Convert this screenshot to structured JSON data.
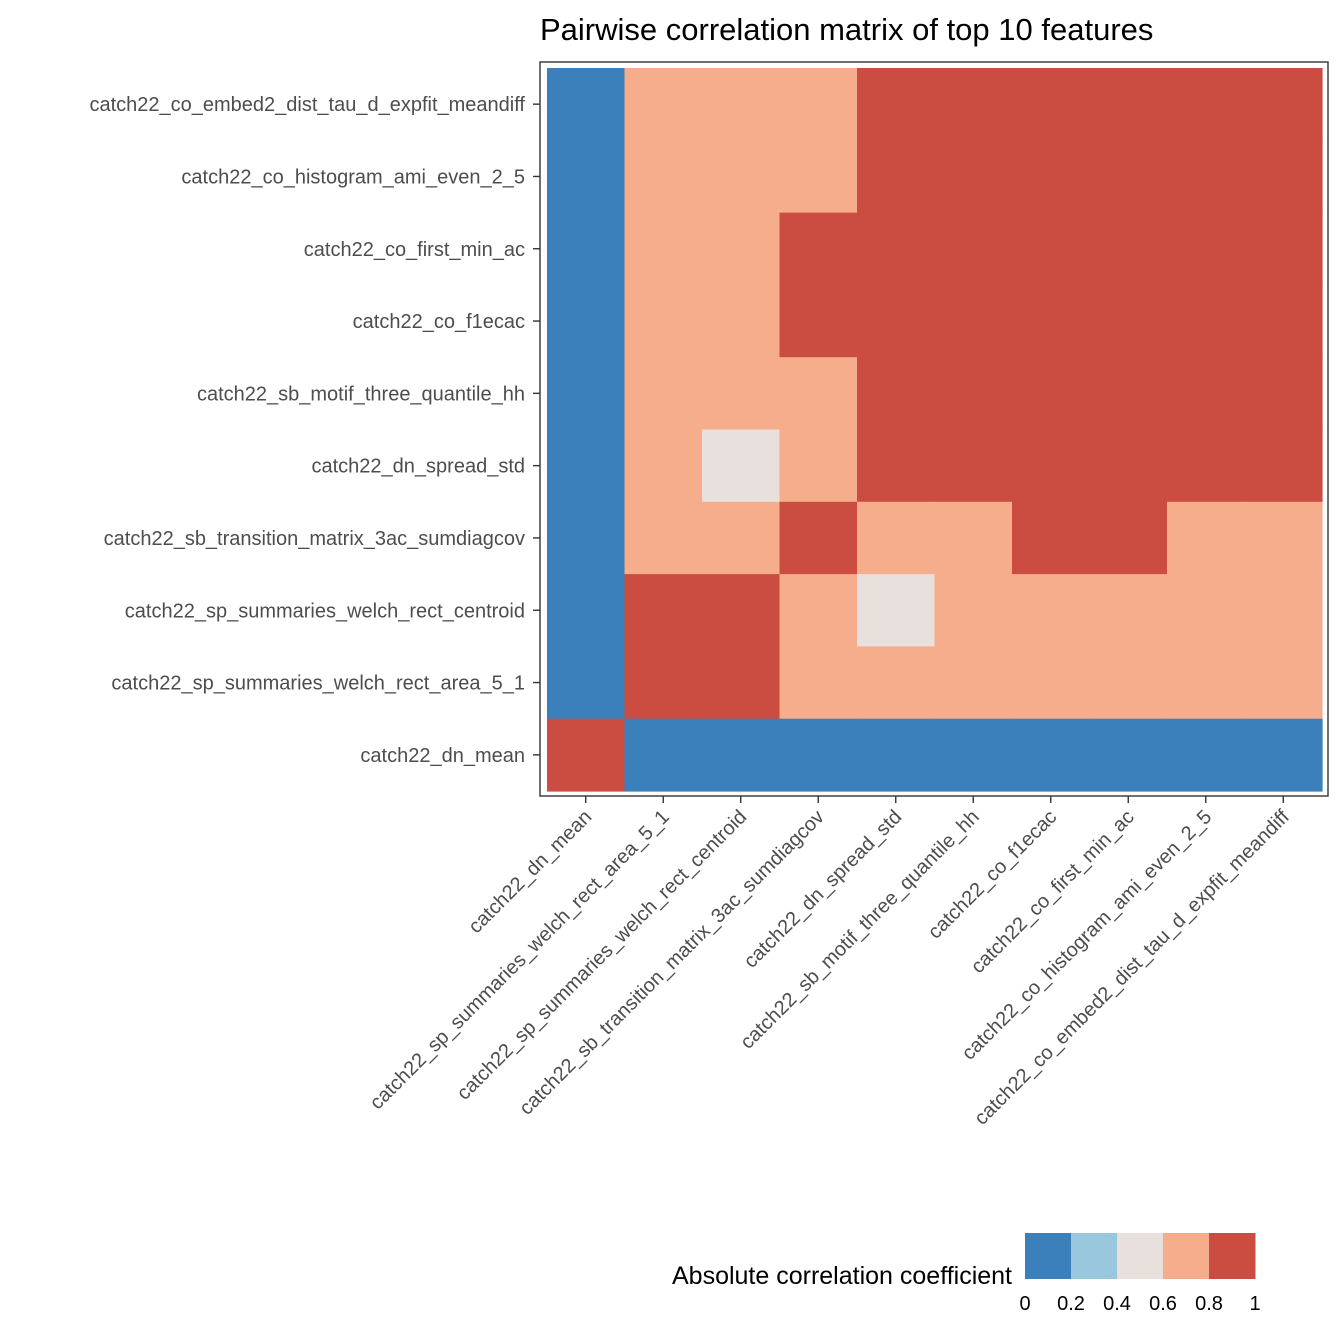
{
  "chart_data": {
    "type": "heatmap",
    "title": "Pairwise correlation matrix of top 10 features",
    "x_categories": [
      "catch22_dn_mean",
      "catch22_sp_summaries_welch_rect_area_5_1",
      "catch22_sp_summaries_welch_rect_centroid",
      "catch22_sb_transition_matrix_3ac_sumdiagcov",
      "catch22_dn_spread_std",
      "catch22_sb_motif_three_quantile_hh",
      "catch22_co_f1ecac",
      "catch22_co_first_min_ac",
      "catch22_co_histogram_ami_even_2_5",
      "catch22_co_embed2_dist_tau_d_expfit_meandiff"
    ],
    "y_categories_top_to_bottom": [
      "catch22_co_embed2_dist_tau_d_expfit_meandiff",
      "catch22_co_histogram_ami_even_2_5",
      "catch22_co_first_min_ac",
      "catch22_co_f1ecac",
      "catch22_sb_motif_three_quantile_hh",
      "catch22_dn_spread_std",
      "catch22_sb_transition_matrix_3ac_sumdiagcov",
      "catch22_sp_summaries_welch_rect_centroid",
      "catch22_sp_summaries_welch_rect_area_5_1",
      "catch22_dn_mean"
    ],
    "bins": [
      {
        "range": [
          0,
          0.2
        ],
        "color": "#3b80bb"
      },
      {
        "range": [
          0.2,
          0.4
        ],
        "color": "#98c7de"
      },
      {
        "range": [
          0.4,
          0.6
        ],
        "color": "#e7e0dd"
      },
      {
        "range": [
          0.6,
          0.8
        ],
        "color": "#f6ad8b"
      },
      {
        "range": [
          0.8,
          1
        ],
        "color": "#cb4d42"
      }
    ],
    "cell_bins_top_to_bottom": [
      [
        0,
        3,
        3,
        3,
        4,
        4,
        4,
        4,
        4,
        4
      ],
      [
        0,
        3,
        3,
        3,
        4,
        4,
        4,
        4,
        4,
        4
      ],
      [
        0,
        3,
        3,
        4,
        4,
        4,
        4,
        4,
        4,
        4
      ],
      [
        0,
        3,
        3,
        4,
        4,
        4,
        4,
        4,
        4,
        4
      ],
      [
        0,
        3,
        3,
        3,
        4,
        4,
        4,
        4,
        4,
        4
      ],
      [
        0,
        3,
        2,
        3,
        4,
        4,
        4,
        4,
        4,
        4
      ],
      [
        0,
        3,
        3,
        4,
        3,
        3,
        4,
        4,
        3,
        3
      ],
      [
        0,
        4,
        4,
        3,
        2,
        3,
        3,
        3,
        3,
        3
      ],
      [
        0,
        4,
        4,
        3,
        3,
        3,
        3,
        3,
        3,
        3
      ],
      [
        4,
        0,
        0,
        0,
        0,
        0,
        0,
        0,
        0,
        0
      ]
    ],
    "legend": {
      "title": "Absolute correlation coefficient",
      "ticks": [
        "0",
        "0.2",
        "0.4",
        "0.6",
        "0.8",
        "1"
      ],
      "position": "bottom"
    },
    "grid": false
  }
}
